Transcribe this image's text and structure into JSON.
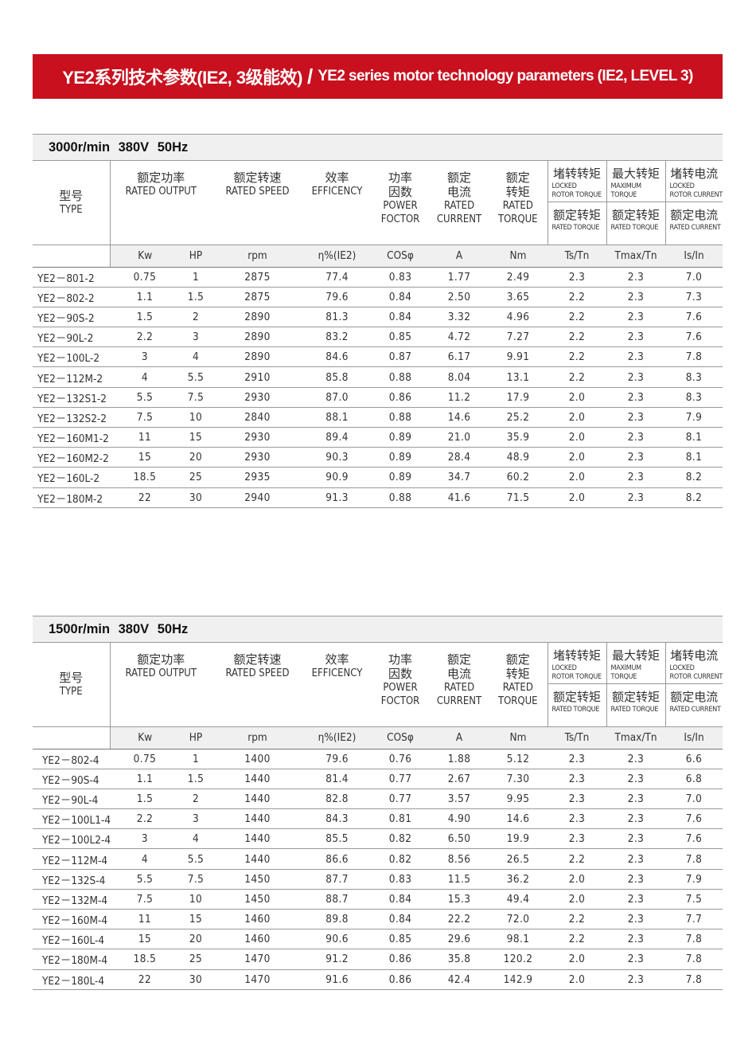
{
  "banner": {
    "cn": "YE2系列技术参数(IE2, 3级能效)",
    "sep": "/",
    "en": "YE2 series motor technology parameters (IE2, LEVEL 3)"
  },
  "header": {
    "type_cn": "型号",
    "type_en": "TYPE",
    "output_cn": "额定功率",
    "output_en": "RATED OUTPUT",
    "speed_cn": "额定转速",
    "speed_en": "RATED SPEED",
    "eff_cn": "效率",
    "eff_en": "EFFICENCY",
    "pf_cn1": "功率",
    "pf_cn2": "因数",
    "pf_en1": "POWER",
    "pf_en2": "FOCTOR",
    "cur_cn1": "额定",
    "cur_cn2": "电流",
    "cur_en1": "RATED",
    "cur_en2": "CURRENT",
    "tq_cn1": "额定",
    "tq_cn2": "转矩",
    "tq_en1": "RATED",
    "tq_en2": "TORQUE",
    "ts_top_cn": "堵转转矩",
    "ts_top_en1": "LOCKED",
    "ts_top_en2": "ROTOR TORQUE",
    "ts_bot_cn": "额定转矩",
    "ts_bot_en": "RATED TORQUE",
    "tmax_top_cn": "最大转矩",
    "tmax_top_en1": "MAXIMUM",
    "tmax_top_en2": "TORQUE",
    "tmax_bot_cn": "额定转矩",
    "tmax_bot_en": "RATED TORQUE",
    "is_top_cn": "堵转电流",
    "is_top_en1": "LOCKED",
    "is_top_en2": "ROTOR CURRENT",
    "is_bot_cn": "额定电流",
    "is_bot_en": "RATED CURRENT",
    "units": [
      "Kw",
      "HP",
      "rpm",
      "η%(IE2)",
      "COSφ",
      "A",
      "Nm",
      "Ts/Tn",
      "Tmax/Tn",
      "Is/In"
    ]
  },
  "tables": [
    {
      "title": "3000r/min  380V  50Hz",
      "rows": [
        [
          "YE2－801-2",
          "0.75",
          "1",
          "2875",
          "77.4",
          "0.83",
          "1.77",
          "2.49",
          "2.3",
          "2.3",
          "7.0"
        ],
        [
          "YE2－802-2",
          "1.1",
          "1.5",
          "2875",
          "79.6",
          "0.84",
          "2.50",
          "3.65",
          "2.2",
          "2.3",
          "7.3"
        ],
        [
          "YE2－90S-2",
          "1.5",
          "2",
          "2890",
          "81.3",
          "0.84",
          "3.32",
          "4.96",
          "2.2",
          "2.3",
          "7.6"
        ],
        [
          "YE2－90L-2",
          "2.2",
          "3",
          "2890",
          "83.2",
          "0.85",
          "4.72",
          "7.27",
          "2.2",
          "2.3",
          "7.6"
        ],
        [
          "YE2－100L-2",
          "3",
          "4",
          "2890",
          "84.6",
          "0.87",
          "6.17",
          "9.91",
          "2.2",
          "2.3",
          "7.8"
        ],
        [
          "YE2－112M-2",
          "4",
          "5.5",
          "2910",
          "85.8",
          "0.88",
          "8.04",
          "13.1",
          "2.2",
          "2.3",
          "8.3"
        ],
        [
          "YE2－132S1-2",
          "5.5",
          "7.5",
          "2930",
          "87.0",
          "0.86",
          "11.2",
          "17.9",
          "2.0",
          "2.3",
          "8.3"
        ],
        [
          "YE2－132S2-2",
          "7.5",
          "10",
          "2840",
          "88.1",
          "0.88",
          "14.6",
          "25.2",
          "2.0",
          "2.3",
          "7.9"
        ],
        [
          "YE2－160M1-2",
          "11",
          "15",
          "2930",
          "89.4",
          "0.89",
          "21.0",
          "35.9",
          "2.0",
          "2.3",
          "8.1"
        ],
        [
          "YE2－160M2-2",
          "15",
          "20",
          "2930",
          "90.3",
          "0.89",
          "28.4",
          "48.9",
          "2.0",
          "2.3",
          "8.1"
        ],
        [
          "YE2－160L-2",
          "18.5",
          "25",
          "2935",
          "90.9",
          "0.89",
          "34.7",
          "60.2",
          "2.0",
          "2.3",
          "8.2"
        ],
        [
          "YE2－180M-2",
          "22",
          "30",
          "2940",
          "91.3",
          "0.88",
          "41.6",
          "71.5",
          "2.0",
          "2.3",
          "8.2"
        ]
      ]
    },
    {
      "title": "1500r/min  380V  50Hz",
      "rows": [
        [
          "YE2－802-4",
          "0.75",
          "1",
          "1400",
          "79.6",
          "0.76",
          "1.88",
          "5.12",
          "2.3",
          "2.3",
          "6.6"
        ],
        [
          "YE2－90S-4",
          "1.1",
          "1.5",
          "1440",
          "81.4",
          "0.77",
          "2.67",
          "7.30",
          "2.3",
          "2.3",
          "6.8"
        ],
        [
          "YE2－90L-4",
          "1.5",
          "2",
          "1440",
          "82.8",
          "0.77",
          "3.57",
          "9.95",
          "2.3",
          "2.3",
          "7.0"
        ],
        [
          "YE2－100L1-4",
          "2.2",
          "3",
          "1440",
          "84.3",
          "0.81",
          "4.90",
          "14.6",
          "2.3",
          "2.3",
          "7.6"
        ],
        [
          "YE2－100L2-4",
          "3",
          "4",
          "1440",
          "85.5",
          "0.82",
          "6.50",
          "19.9",
          "2.3",
          "2.3",
          "7.6"
        ],
        [
          "YE2－112M-4",
          "4",
          "5.5",
          "1440",
          "86.6",
          "0.82",
          "8.56",
          "26.5",
          "2.2",
          "2.3",
          "7.8"
        ],
        [
          "YE2－132S-4",
          "5.5",
          "7.5",
          "1450",
          "87.7",
          "0.83",
          "11.5",
          "36.2",
          "2.0",
          "2.3",
          "7.9"
        ],
        [
          "YE2－132M-4",
          "7.5",
          "10",
          "1450",
          "88.7",
          "0.84",
          "15.3",
          "49.4",
          "2.0",
          "2.3",
          "7.5"
        ],
        [
          "YE2－160M-4",
          "11",
          "15",
          "1460",
          "89.8",
          "0.84",
          "22.2",
          "72.0",
          "2.2",
          "2.3",
          "7.7"
        ],
        [
          "YE2－160L-4",
          "15",
          "20",
          "1460",
          "90.6",
          "0.85",
          "29.6",
          "98.1",
          "2.2",
          "2.3",
          "7.8"
        ],
        [
          "YE2－180M-4",
          "18.5",
          "25",
          "1470",
          "91.2",
          "0.86",
          "35.8",
          "120.2",
          "2.0",
          "2.3",
          "7.8"
        ],
        [
          "YE2－180L-4",
          "22",
          "30",
          "1470",
          "91.6",
          "0.86",
          "42.4",
          "142.9",
          "2.0",
          "2.3",
          "7.8"
        ]
      ]
    }
  ],
  "colors": {
    "banner": "#c8101e",
    "band": "#f0f0f0"
  }
}
